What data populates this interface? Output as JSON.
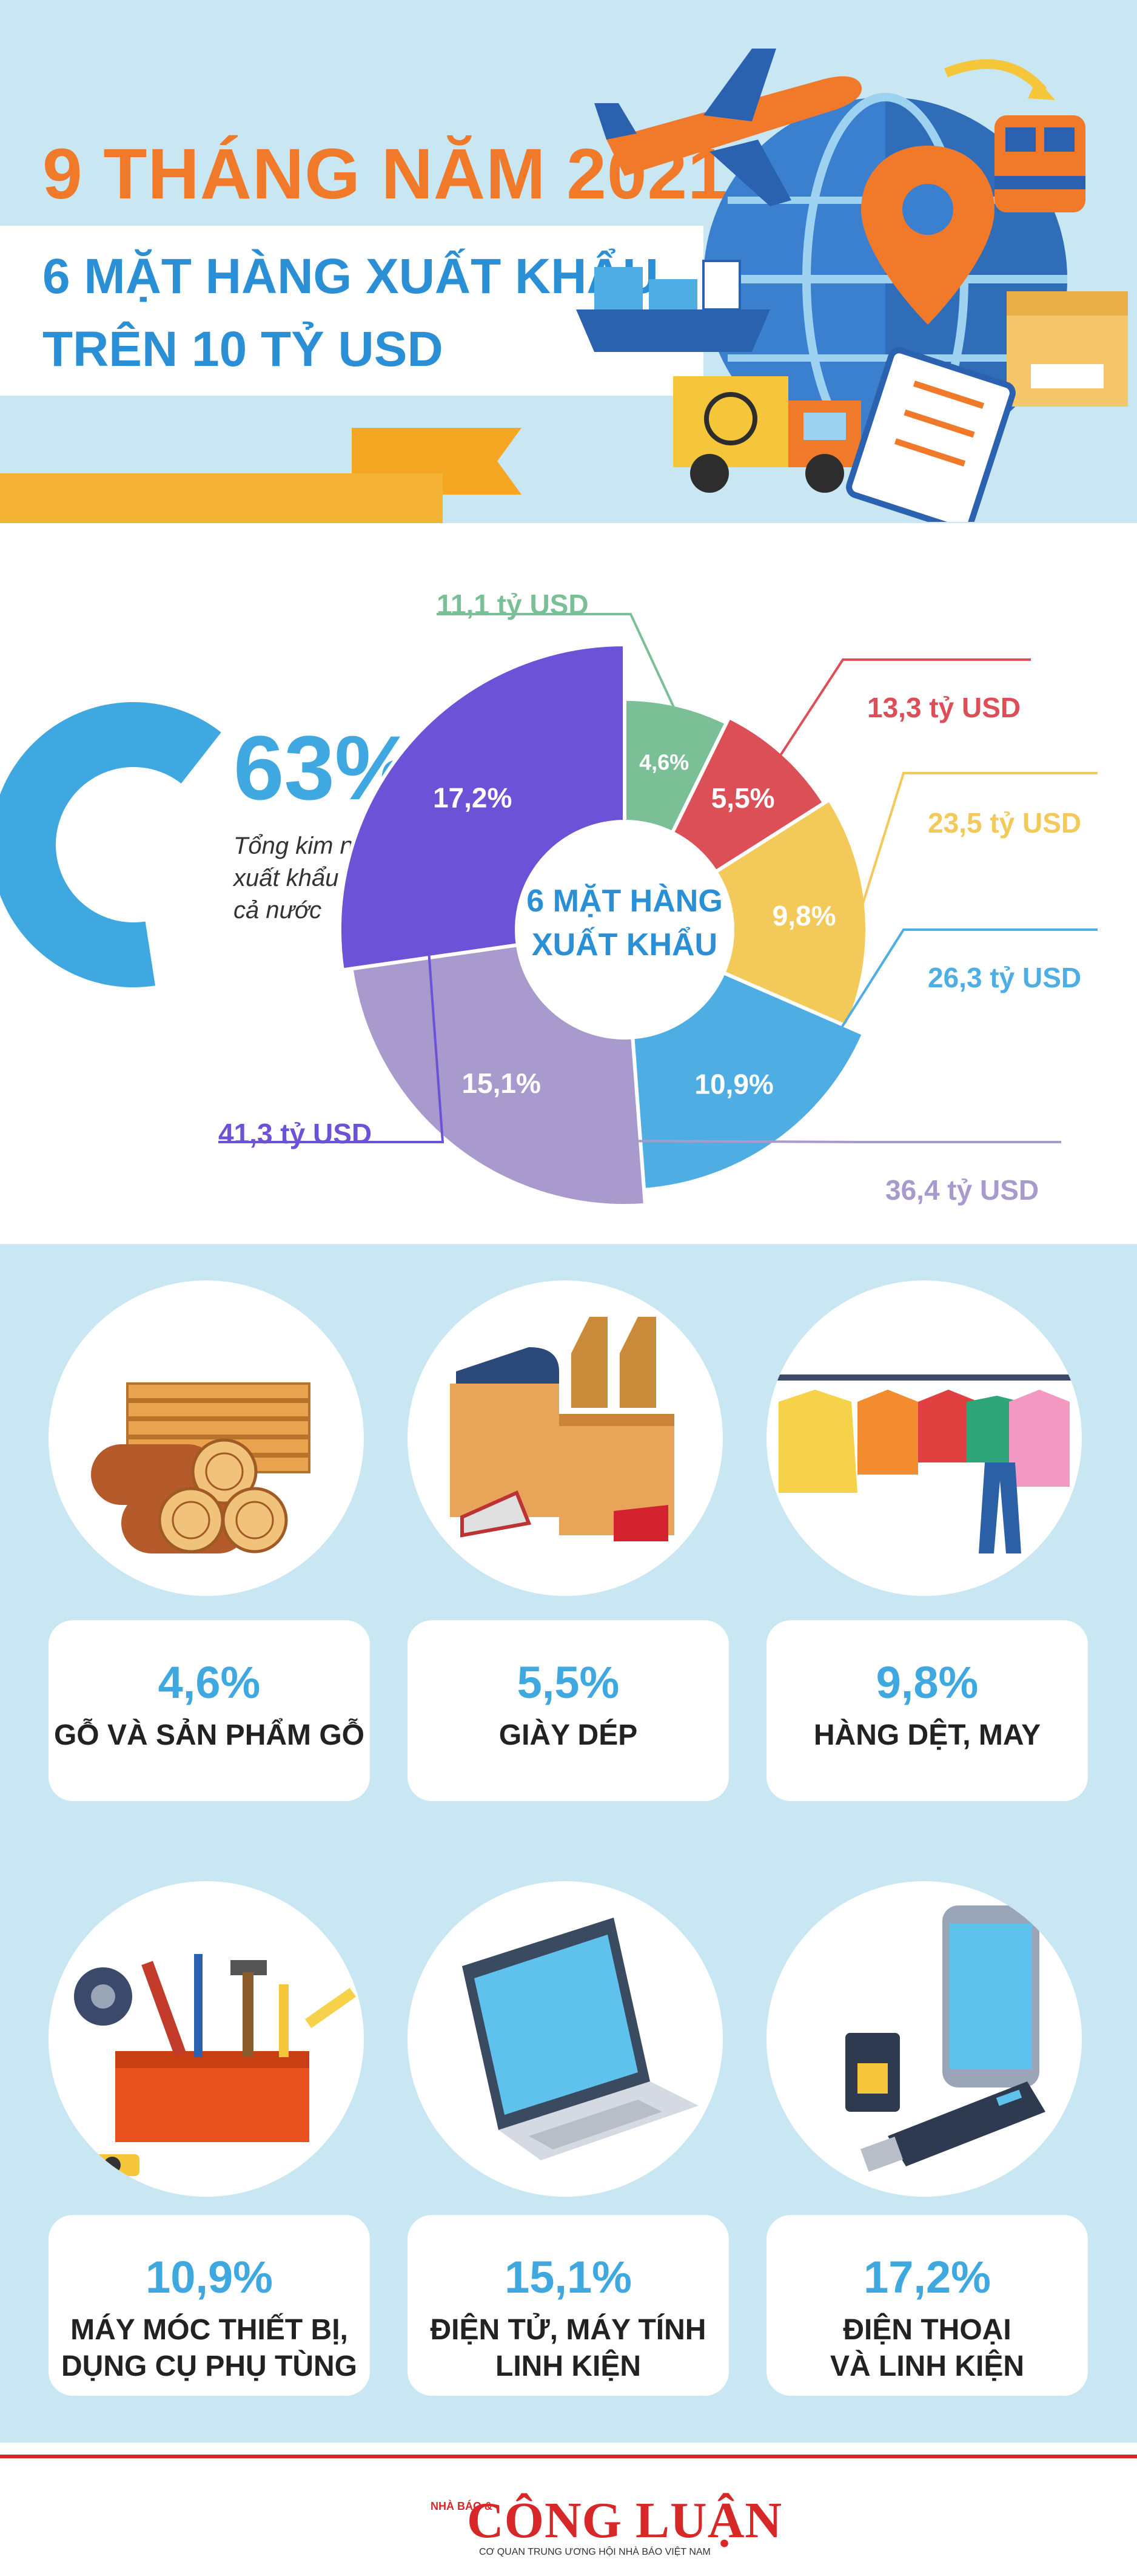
{
  "header": {
    "title_year": "9 THÁNG NĂM 2021",
    "subtitle_line1": "6 MẶT HÀNG XUẤT KHẨU",
    "subtitle_line2": "TRÊN 10 TỶ USD"
  },
  "summary": {
    "percent": "63%",
    "percent_value": 63,
    "caption_line1": "Tổng kim ngạch",
    "caption_line2": "xuất khẩu của",
    "caption_line3": "cả nước"
  },
  "chart_data": {
    "type": "pie",
    "center_label_line1": "6 MẶT HÀNG",
    "center_label_line2": "XUẤT KHẨU",
    "slices": [
      {
        "name": "Gỗ và sản phẩm gỗ",
        "percent": 4.6,
        "percent_label": "4,6%",
        "value_label": "11,1 tỷ USD",
        "value": 11.1,
        "color": "#7bbf97"
      },
      {
        "name": "Giày dép",
        "percent": 5.5,
        "percent_label": "5,5%",
        "value_label": "13,3 tỷ USD",
        "value": 13.3,
        "color": "#dc4f57"
      },
      {
        "name": "Hàng dệt, may",
        "percent": 9.8,
        "percent_label": "9,8%",
        "value_label": "23,5 tỷ USD",
        "value": 23.5,
        "color": "#f3c95a"
      },
      {
        "name": "Máy móc thiết bị, dụng cụ phụ tùng",
        "percent": 10.9,
        "percent_label": "10,9%",
        "value_label": "26,3 tỷ USD",
        "value": 26.3,
        "color": "#4eaee3"
      },
      {
        "name": "Điện tử, máy tính linh kiện",
        "percent": 15.1,
        "percent_label": "15,1%",
        "value_label": "36,4 tỷ USD",
        "value": 36.4,
        "color": "#a89acd"
      },
      {
        "name": "Điện thoại và linh kiện",
        "percent": 17.2,
        "percent_label": "17,2%",
        "value_label": "41,3 tỷ USD",
        "value": 41.3,
        "color": "#6b52d6"
      }
    ]
  },
  "products": [
    {
      "percent": "4,6%",
      "label_line1": "GỖ VÀ SẢN PHẨM GỖ",
      "label_line2": "",
      "icon": "lumber-icon"
    },
    {
      "percent": "5,5%",
      "label_line1": "GIÀY DÉP",
      "label_line2": "",
      "icon": "footwear-icon"
    },
    {
      "percent": "9,8%",
      "label_line1": "HÀNG DỆT, MAY",
      "label_line2": "",
      "icon": "clothes-rack-icon"
    },
    {
      "percent": "10,9%",
      "label_line1": "MÁY MÓC THIẾT BỊ,",
      "label_line2": "DỤNG CỤ PHỤ TÙNG",
      "icon": "toolbox-icon"
    },
    {
      "percent": "15,1%",
      "label_line1": "ĐIỆN TỬ, MÁY TÍNH",
      "label_line2": "LINH KIỆN",
      "icon": "laptop-icon"
    },
    {
      "percent": "17,2%",
      "label_line1": "ĐIỆN THOẠI",
      "label_line2": "VÀ LINH KIỆN",
      "icon": "phone-icon"
    }
  ],
  "footer": {
    "logo_small": "NHÀ BÁO &",
    "logo_main": "CÔNG LUẬN",
    "tagline": "CƠ QUAN TRUNG ƯƠNG HỘI NHÀ BÁO VIỆT NAM"
  },
  "colors": {
    "orange": "#f07a2a",
    "blue": "#2b8fd6",
    "light_blue_bg": "#c9e7f2",
    "ribbon": "#f5b335",
    "red": "#d62828"
  }
}
